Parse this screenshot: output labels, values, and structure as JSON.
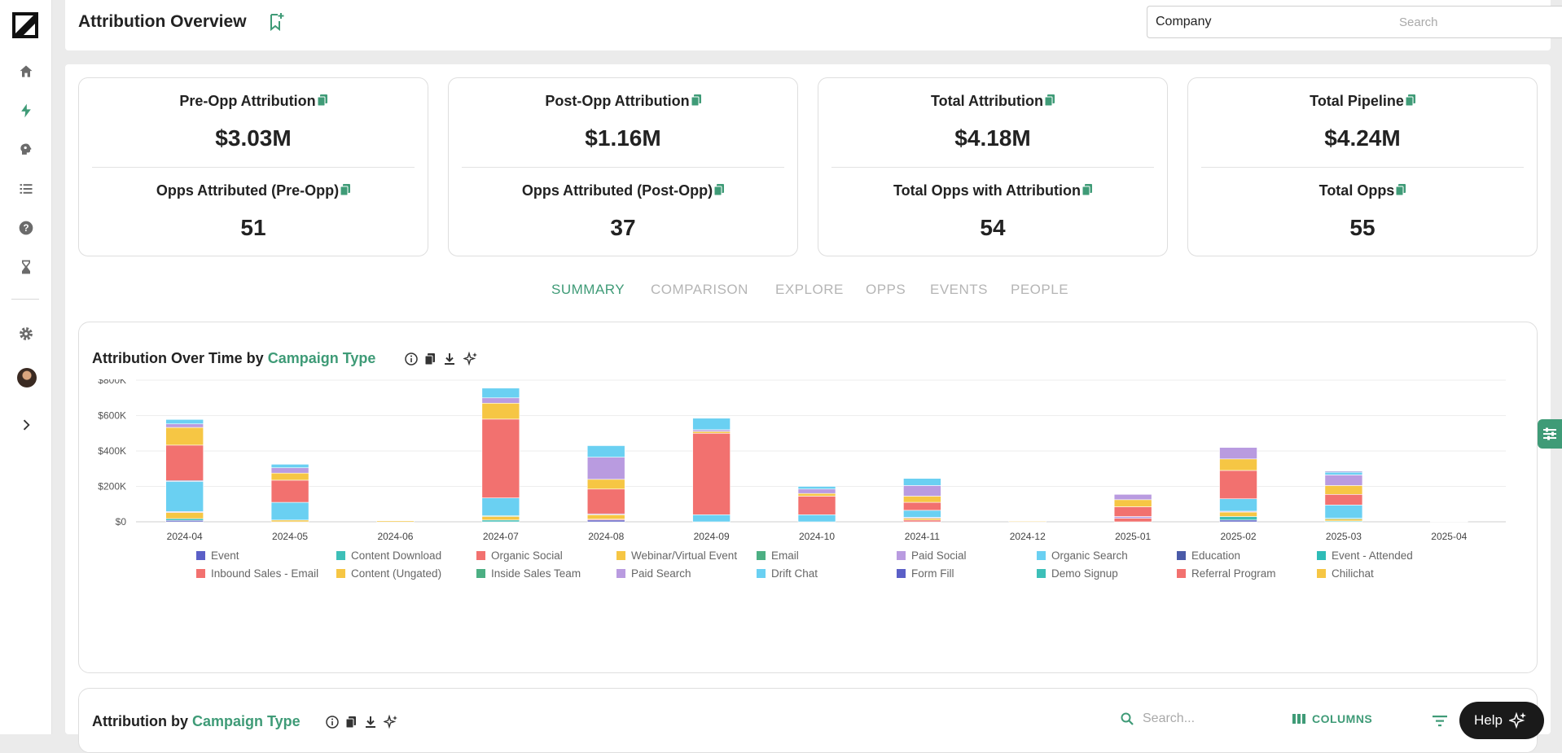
{
  "header": {
    "title": "Attribution Overview",
    "company_select": "Company",
    "search_placeholder": "Search"
  },
  "kpis": [
    {
      "label1": "Pre-Opp Attribution",
      "value1": "$3.03M",
      "label2": "Opps Attributed (Pre-Opp)",
      "value2": "51"
    },
    {
      "label1": "Post-Opp Attribution",
      "value1": "$1.16M",
      "label2": "Opps Attributed (Post-Opp)",
      "value2": "37"
    },
    {
      "label1": "Total Attribution",
      "value1": "$4.18M",
      "label2": "Total Opps with Attribution",
      "value2": "54"
    },
    {
      "label1": "Total Pipeline",
      "value1": "$4.24M",
      "label2": "Total Opps",
      "value2": "55"
    }
  ],
  "tabs": [
    "SUMMARY",
    "COMPARISON",
    "EXPLORE",
    "OPPS",
    "EVENTS",
    "PEOPLE"
  ],
  "active_tab": "SUMMARY",
  "chart_section": {
    "title_prefix": "Attribution Over Time by",
    "title_accent": "Campaign Type"
  },
  "chart_data": {
    "type": "bar",
    "stacked": true,
    "categories": [
      "2024-04",
      "2024-05",
      "2024-06",
      "2024-07",
      "2024-08",
      "2024-09",
      "2024-10",
      "2024-11",
      "2024-12",
      "2025-01",
      "2025-02",
      "2025-03",
      "2025-04"
    ],
    "yticks": [
      "$0",
      "$200K",
      "$400K",
      "$600K",
      "$800K"
    ],
    "ylim": [
      0,
      800000
    ],
    "grid": true,
    "legend_position": "bottom",
    "series": [
      {
        "name": "Event",
        "color": "#5b5fc7",
        "values": [
          8000,
          0,
          0,
          0,
          10000,
          0,
          0,
          0,
          0,
          0,
          10000,
          0,
          0
        ]
      },
      {
        "name": "Content Download",
        "color": "#3dbfb8",
        "values": [
          10000,
          0,
          0,
          10000,
          0,
          0,
          0,
          0,
          0,
          0,
          20000,
          5000,
          0
        ]
      },
      {
        "name": "Organic Social",
        "color": "#f2716f",
        "values": [
          0,
          0,
          0,
          0,
          5000,
          0,
          0,
          10000,
          0,
          20000,
          0,
          0,
          0
        ]
      },
      {
        "name": "Webinar/Virtual Event",
        "color": "#f6c644",
        "values": [
          35000,
          10000,
          6000,
          20000,
          25000,
          0,
          0,
          10000,
          0,
          0,
          25000,
          10000,
          2000
        ]
      },
      {
        "name": "Email",
        "color": "#4caf83",
        "values": [
          0,
          0,
          0,
          5000,
          0,
          0,
          0,
          0,
          0,
          0,
          0,
          5000,
          0
        ]
      },
      {
        "name": "Paid Social",
        "color": "#b99be0",
        "values": [
          5000,
          0,
          0,
          0,
          5000,
          0,
          0,
          5000,
          0,
          10000,
          5000,
          0,
          0
        ]
      },
      {
        "name": "Organic Search",
        "color": "#6ad0f2",
        "values": [
          170000,
          100000,
          0,
          100000,
          0,
          40000,
          40000,
          40000,
          0,
          0,
          70000,
          75000,
          0
        ]
      },
      {
        "name": "Education",
        "color": "#4a5aa8",
        "values": [
          5000,
          0,
          0,
          0,
          0,
          0,
          0,
          0,
          0,
          0,
          0,
          0,
          0
        ]
      },
      {
        "name": "Event - Attended",
        "color": "#2ebcb7",
        "values": [
          0,
          0,
          0,
          0,
          0,
          0,
          0,
          0,
          0,
          0,
          0,
          0,
          0
        ]
      },
      {
        "name": "Inbound Sales - Email",
        "color": "#f2716f",
        "values": [
          200000,
          125000,
          0,
          445000,
          140000,
          460000,
          105000,
          45000,
          0,
          55000,
          160000,
          60000,
          0
        ]
      },
      {
        "name": "Content (Ungated)",
        "color": "#f6c644",
        "values": [
          100000,
          40000,
          0,
          90000,
          55000,
          10000,
          15000,
          35000,
          4000,
          40000,
          65000,
          50000,
          0
        ]
      },
      {
        "name": "Inside Sales Team",
        "color": "#4caf83",
        "values": [
          0,
          0,
          0,
          0,
          0,
          0,
          0,
          0,
          0,
          0,
          0,
          0,
          0
        ]
      },
      {
        "name": "Paid Search",
        "color": "#b99be0",
        "values": [
          20000,
          30000,
          0,
          30000,
          125000,
          10000,
          25000,
          60000,
          0,
          30000,
          65000,
          60000,
          0
        ]
      },
      {
        "name": "Drift Chat",
        "color": "#6ad0f2",
        "values": [
          25000,
          20000,
          0,
          55000,
          65000,
          65000,
          15000,
          40000,
          0,
          0,
          0,
          15000,
          0
        ]
      },
      {
        "name": "Form Fill",
        "color": "#5b5fc7",
        "values": [
          0,
          0,
          0,
          0,
          0,
          0,
          0,
          0,
          0,
          0,
          0,
          5000,
          0
        ]
      },
      {
        "name": "Demo Signup",
        "color": "#3dbfb8",
        "values": [
          0,
          0,
          0,
          0,
          0,
          0,
          0,
          0,
          0,
          0,
          0,
          0,
          0
        ]
      },
      {
        "name": "Referral Program",
        "color": "#f2716f",
        "values": [
          0,
          0,
          0,
          0,
          0,
          0,
          0,
          0,
          0,
          0,
          0,
          0,
          0
        ]
      },
      {
        "name": "Chilichat",
        "color": "#f6c644",
        "values": [
          0,
          0,
          0,
          0,
          0,
          0,
          0,
          0,
          0,
          0,
          0,
          0,
          0
        ]
      }
    ]
  },
  "table_section": {
    "title_prefix": "Attribution by",
    "title_accent": "Campaign Type",
    "search_placeholder": "Search...",
    "columns_label": "COLUMNS"
  },
  "help": {
    "label": "Help"
  }
}
